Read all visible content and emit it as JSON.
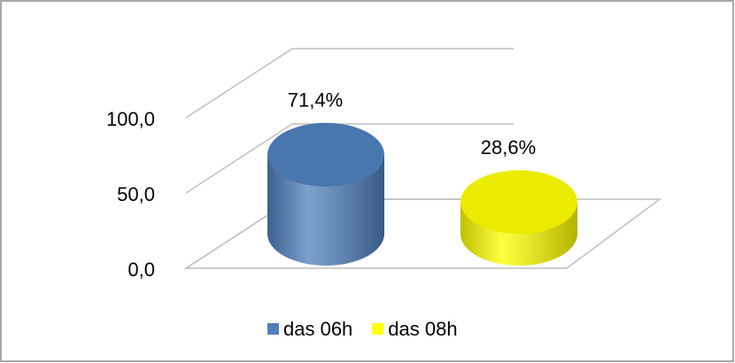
{
  "chart_data": {
    "type": "cylinder",
    "series": [
      {
        "name": "das 06h",
        "color": "#4f81bd",
        "values": [
          71.4
        ],
        "value_labels": [
          "71,4%"
        ]
      },
      {
        "name": "das 08h",
        "color": "#ffff00",
        "values": [
          28.6
        ],
        "value_labels": [
          "28,6%"
        ]
      }
    ],
    "ylim": [
      0,
      100
    ],
    "yticks": [
      {
        "value": 0,
        "label": "0,0"
      },
      {
        "value": 50,
        "label": "50,0"
      },
      {
        "value": 100,
        "label": "100,0"
      }
    ],
    "grid": true,
    "legend": "bottom"
  }
}
